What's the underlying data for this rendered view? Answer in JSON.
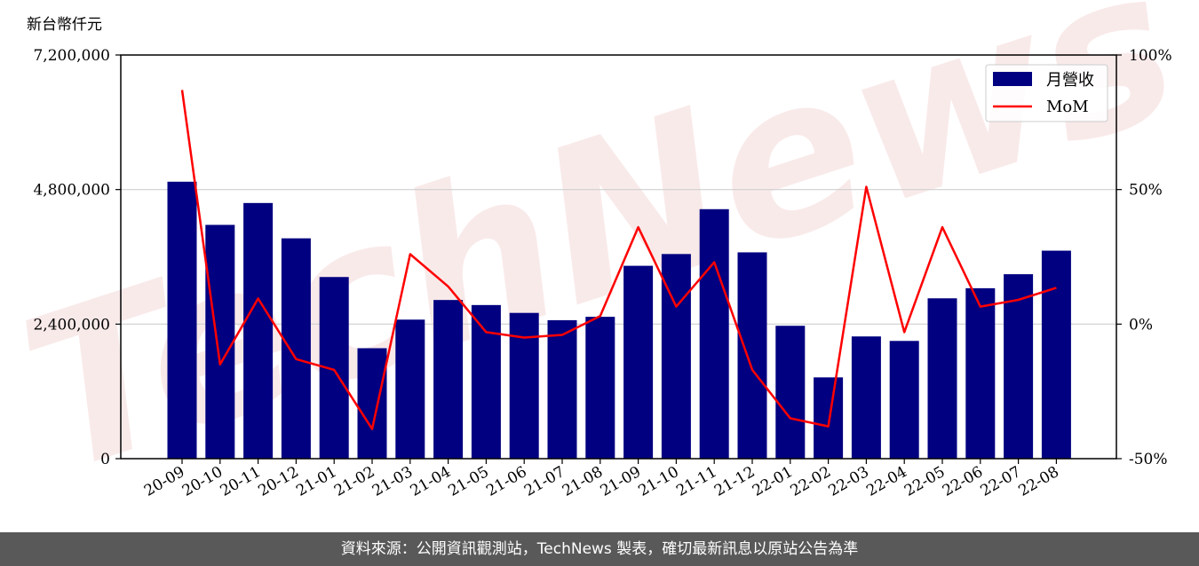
{
  "chart_data": {
    "type": "bar",
    "y_unit_label": "新台幣仟元",
    "categories": [
      "20-09",
      "20-10",
      "20-11",
      "20-12",
      "21-01",
      "21-02",
      "21-03",
      "21-04",
      "21-05",
      "21-06",
      "21-07",
      "21-08",
      "21-09",
      "21-10",
      "21-11",
      "21-12",
      "22-01",
      "22-02",
      "22-03",
      "22-04",
      "22-05",
      "22-06",
      "22-07",
      "22-08"
    ],
    "series": [
      {
        "name": "月營收",
        "type": "bar",
        "axis": "left",
        "color": "#000080",
        "values": [
          4940000,
          4170000,
          4560000,
          3930000,
          3240000,
          1970000,
          2480000,
          2830000,
          2740000,
          2600000,
          2470000,
          2530000,
          3440000,
          3650000,
          4450000,
          3680000,
          2370000,
          1450000,
          2180000,
          2100000,
          2860000,
          3040000,
          3290000,
          3710000
        ]
      },
      {
        "name": "MoM",
        "type": "line",
        "axis": "right",
        "color": "#ff0000",
        "values": [
          87,
          -15,
          9.5,
          -13,
          -17,
          -39,
          26,
          14,
          -3,
          -5,
          -4,
          3,
          36,
          6.5,
          23,
          -17,
          -35,
          -38,
          51,
          -3,
          36,
          6.5,
          9,
          13.5
        ]
      }
    ],
    "y_left": {
      "ylim": [
        0,
        7200000
      ],
      "ticks": [
        0,
        2400000,
        4800000,
        7200000
      ],
      "tick_labels": [
        "0",
        "2,400,000",
        "4,800,000",
        "7,200,000"
      ]
    },
    "y_right": {
      "ylim": [
        -50,
        100
      ],
      "ticks": [
        -50,
        0,
        50,
        100
      ],
      "tick_labels": [
        "-50%",
        "0%",
        "50%",
        "100%"
      ]
    },
    "grid": "horizontal",
    "legend_position": "top-right",
    "watermark": "TechNews"
  },
  "footer": {
    "text": "資料來源：公開資訊觀測站，TechNews 製表，確切最新訊息以原站公告為準"
  }
}
